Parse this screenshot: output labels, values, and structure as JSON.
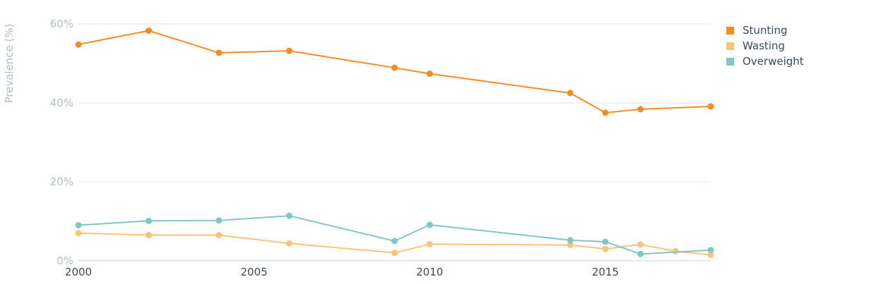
{
  "chart_data": {
    "type": "line",
    "ylabel": "Prevalence (%)",
    "xlabel": "",
    "xlim": [
      2000,
      2018
    ],
    "ylim": [
      0,
      60
    ],
    "x_ticks": [
      2000,
      2005,
      2010,
      2015
    ],
    "x_tick_labels": [
      "2000",
      "2005",
      "2010",
      "2015"
    ],
    "y_ticks": [
      0,
      20,
      40,
      60
    ],
    "y_tick_labels": [
      "0%",
      "20%",
      "40%",
      "60%"
    ],
    "grid": true,
    "legend_position": "top-right",
    "series": [
      {
        "name": "Stunting",
        "color": "#f28c28",
        "points": [
          [
            2000,
            54.8
          ],
          [
            2002,
            58.3
          ],
          [
            2004,
            52.7
          ],
          [
            2006,
            53.2
          ],
          [
            2009,
            48.9
          ],
          [
            2010,
            47.4
          ],
          [
            2014,
            42.5
          ],
          [
            2015,
            37.5
          ],
          [
            2016,
            38.4
          ],
          [
            2018,
            39.1
          ]
        ]
      },
      {
        "name": "Wasting",
        "color": "#fcc37a",
        "points": [
          [
            2000,
            7.0
          ],
          [
            2002,
            6.5
          ],
          [
            2004,
            6.5
          ],
          [
            2006,
            4.4
          ],
          [
            2009,
            2.0
          ],
          [
            2010,
            4.2
          ],
          [
            2014,
            4.0
          ],
          [
            2015,
            3.0
          ],
          [
            2016,
            4.1
          ],
          [
            2017,
            2.4
          ],
          [
            2018,
            1.5
          ]
        ]
      },
      {
        "name": "Overweight",
        "color": "#7fc8c3",
        "points": [
          [
            2000,
            9.0
          ],
          [
            2002,
            10.1
          ],
          [
            2004,
            10.2
          ],
          [
            2006,
            11.4
          ],
          [
            2009,
            5.0
          ],
          [
            2010,
            9.1
          ],
          [
            2014,
            5.2
          ],
          [
            2015,
            4.8
          ],
          [
            2016,
            1.7
          ],
          [
            2018,
            2.7
          ]
        ]
      }
    ]
  }
}
